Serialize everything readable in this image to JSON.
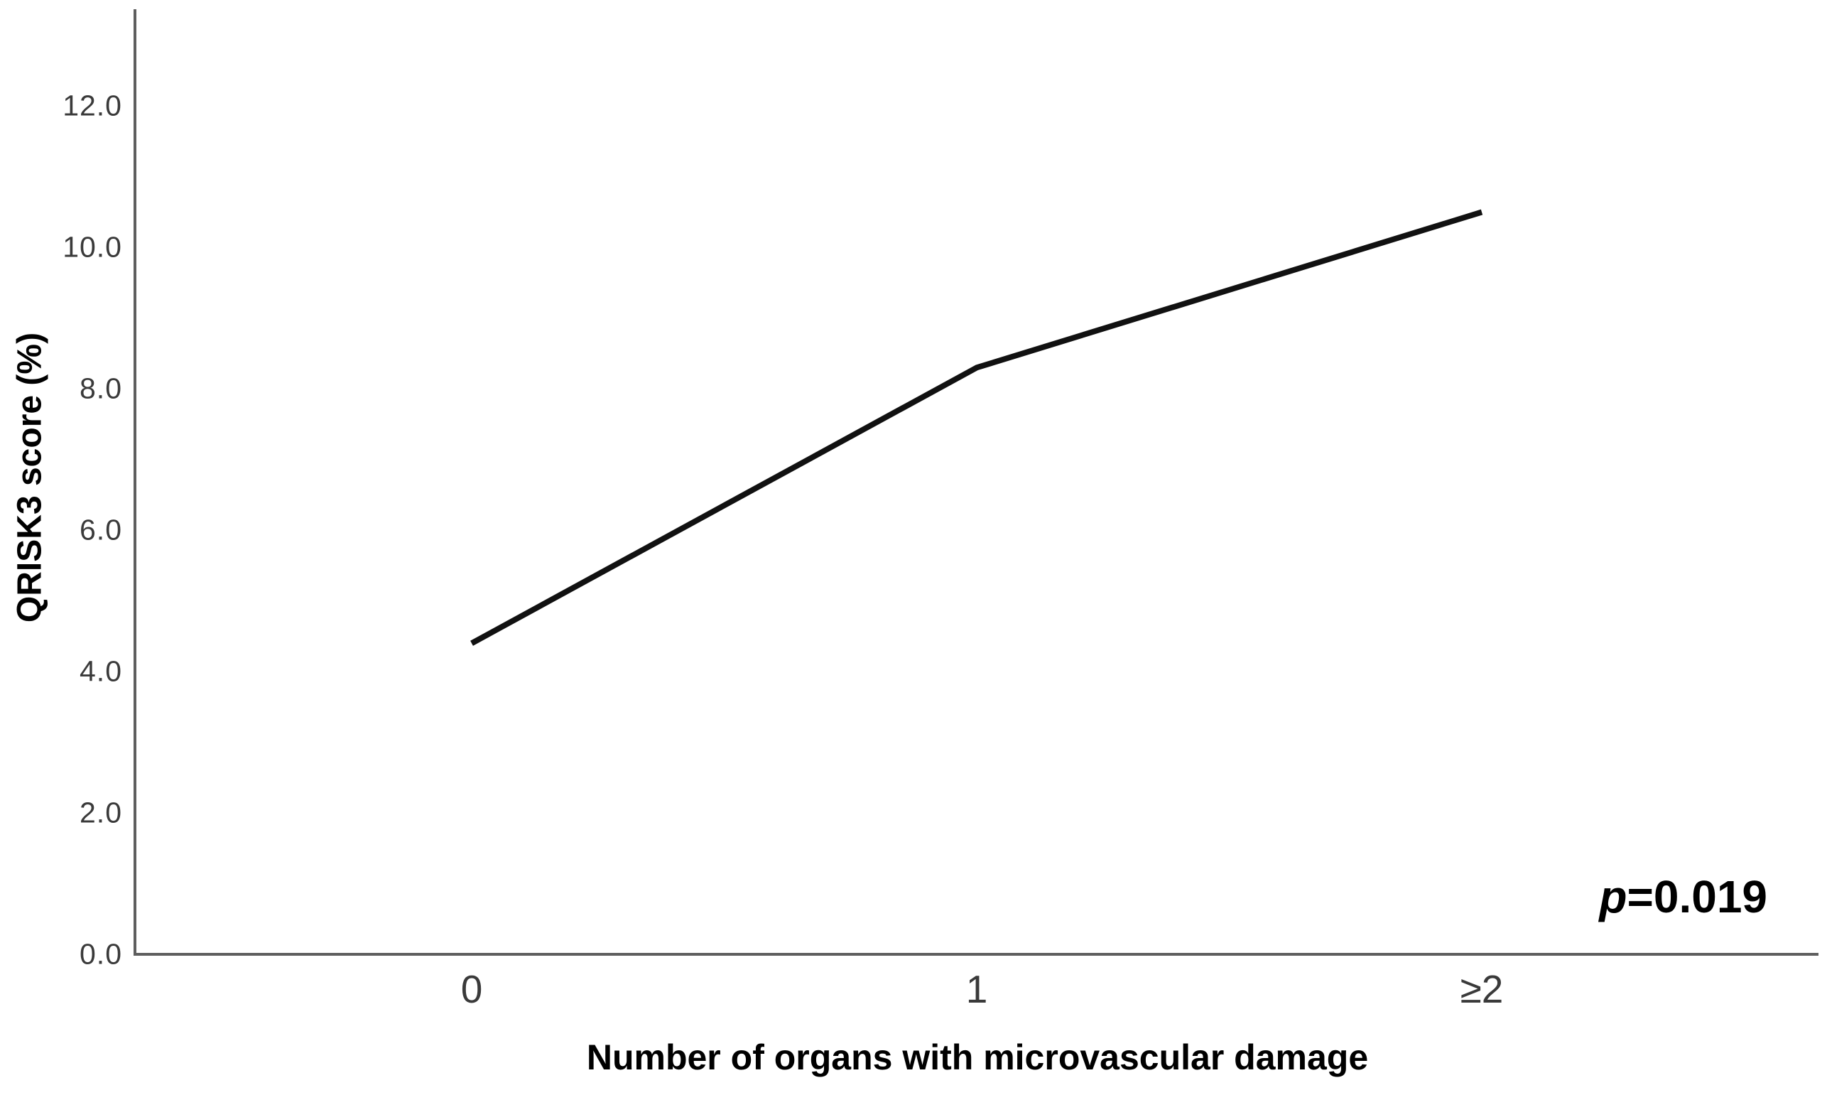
{
  "chart_data": {
    "type": "line",
    "title": "",
    "xlabel": "Number of organs with microvascular damage",
    "ylabel": "QRISK3 score (%)",
    "categories": [
      "0",
      "1",
      "≥2"
    ],
    "series": [
      {
        "name": "QRISK3 score",
        "values": [
          4.4,
          8.3,
          10.5
        ]
      }
    ],
    "ylim": [
      0,
      13.35
    ],
    "yticks": [
      {
        "value": 0,
        "label": "0.0"
      },
      {
        "value": 2,
        "label": "2.0"
      },
      {
        "value": 4,
        "label": "4.0"
      },
      {
        "value": 6,
        "label": "6.0"
      },
      {
        "value": 8,
        "label": "8.0"
      },
      {
        "value": 10,
        "label": "10.0"
      },
      {
        "value": 12,
        "label": "12.0"
      }
    ],
    "grid": false,
    "legend_position": "none",
    "annotation": {
      "italic_part": "p",
      "rest_part": "=0.019"
    },
    "colors": {
      "line": "#111111",
      "axis": "#5e5e5e",
      "tick_text": "#3a3a3a",
      "title_text": "#000000"
    }
  }
}
